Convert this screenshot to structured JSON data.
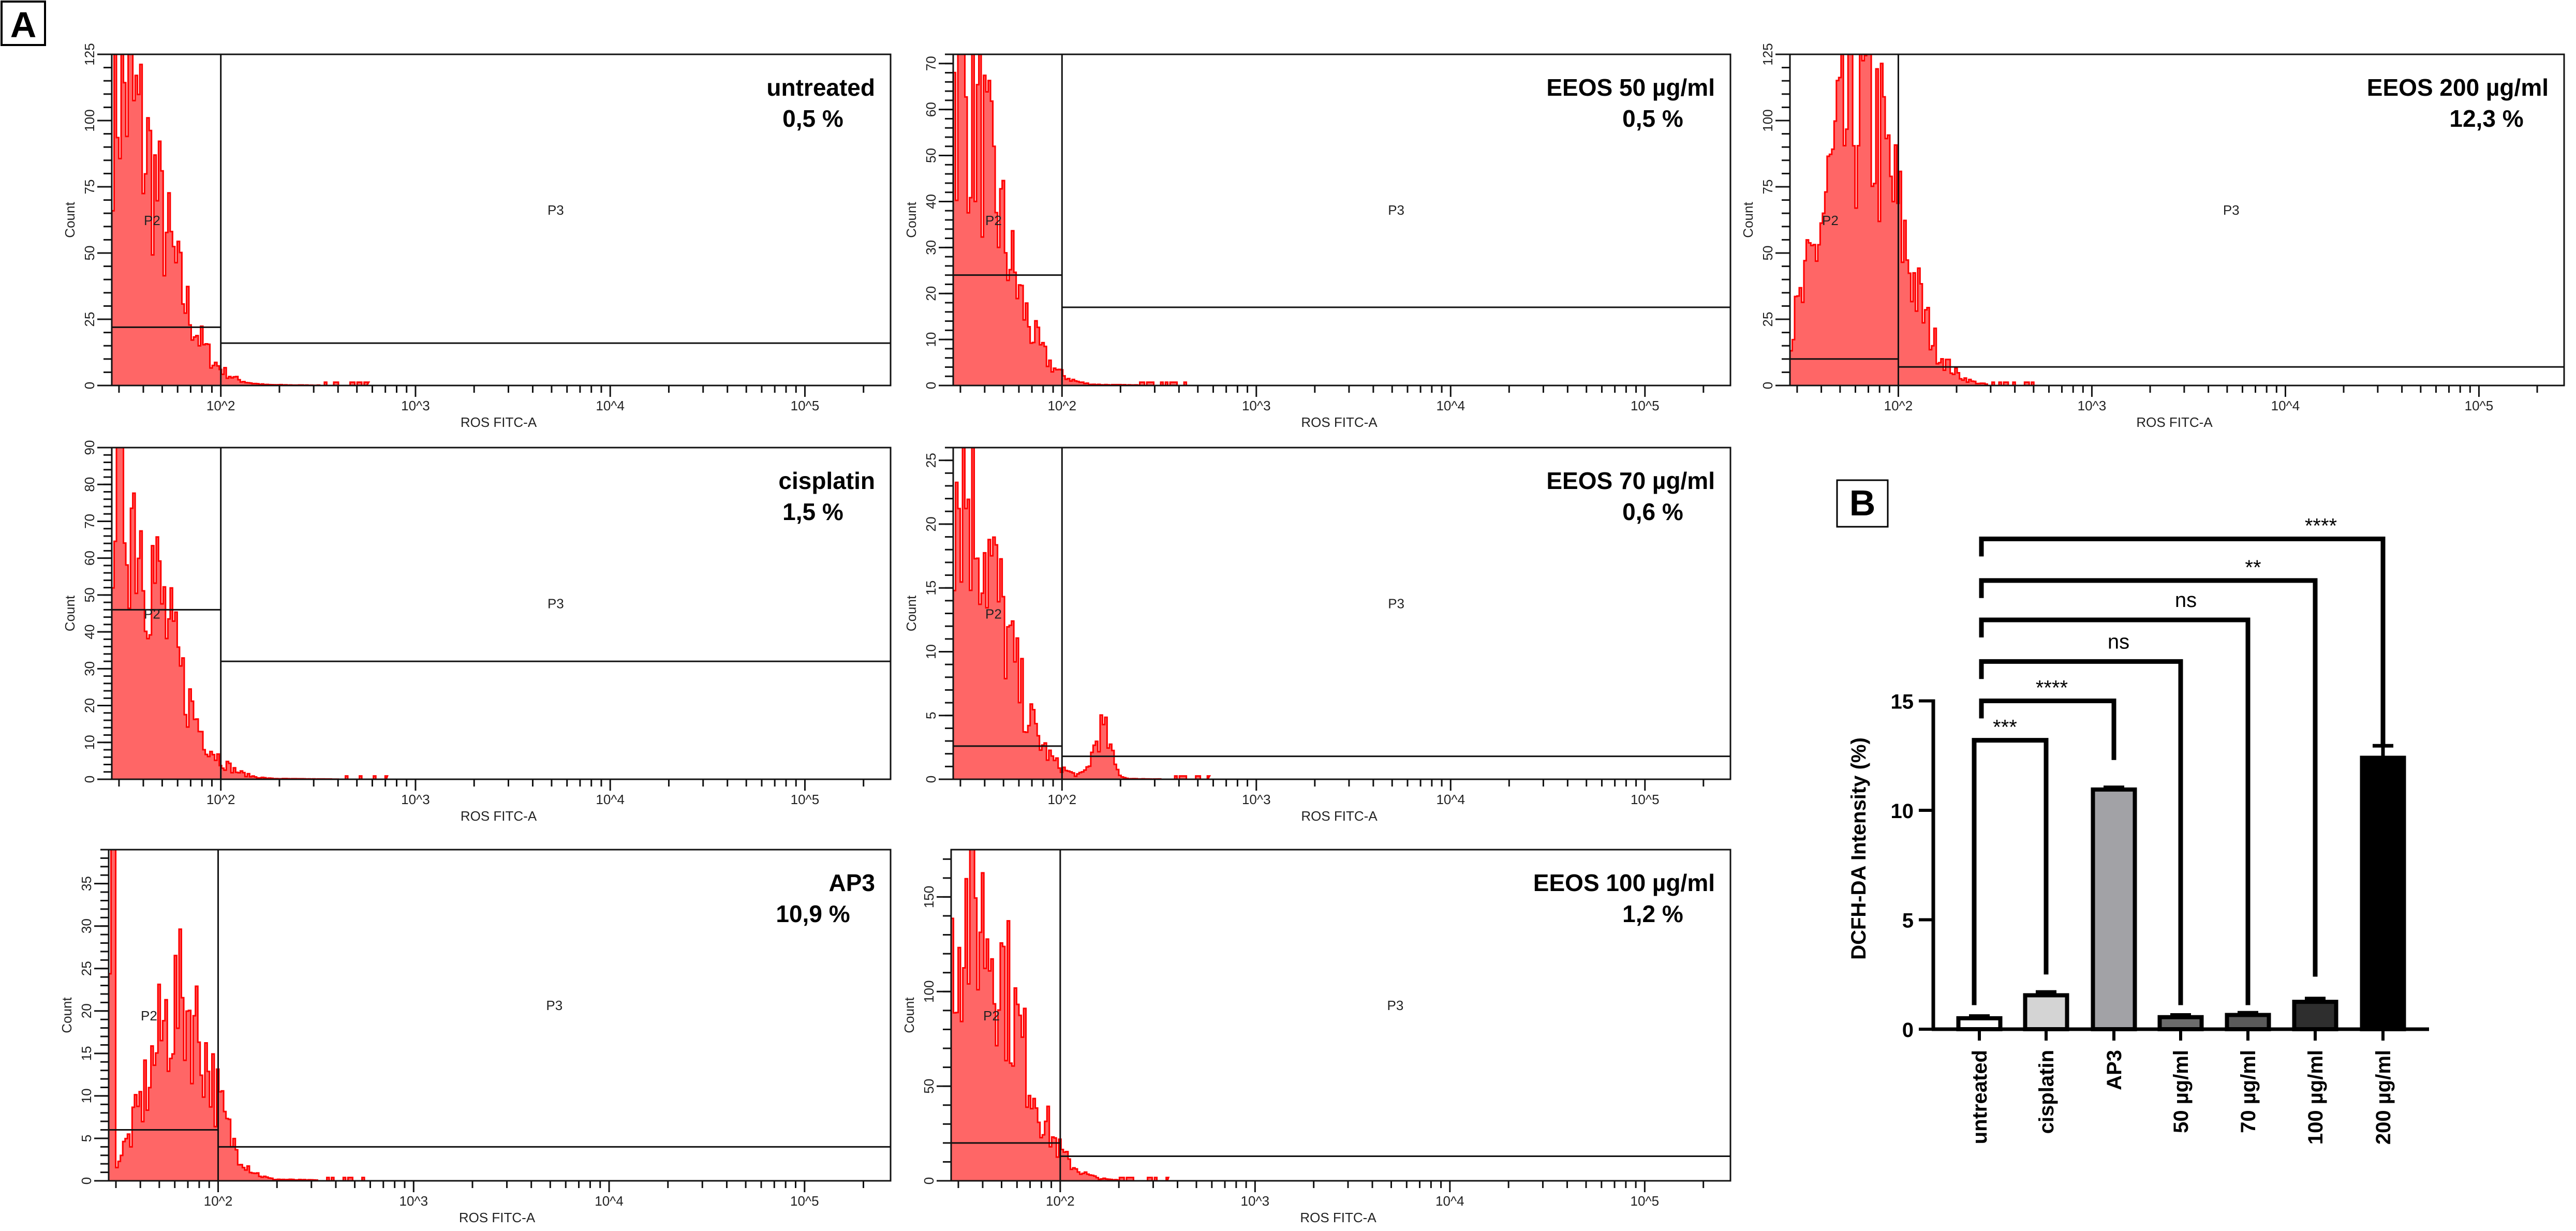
{
  "chart_data": [
    {
      "type": "histogram-grid",
      "panel_label": "A",
      "xlabel": "ROS FITC-A",
      "ylabel": "Count",
      "x_scale": "log",
      "x_tick_labels": [
        "10^2",
        "10^3",
        "10^4",
        "10^5"
      ],
      "gate_labels": [
        "P2",
        "P3"
      ],
      "fill_color": "#ff6666",
      "line_color": "#ff0000",
      "panels": [
        {
          "title": "untreated",
          "percent": "0,5 %",
          "ylim": [
            0,
            125
          ],
          "y_ticks": [
            0,
            25,
            50,
            75,
            100,
            125
          ]
        },
        {
          "title": "EEOS 50 µg/ml",
          "percent": "0,5 %",
          "ylim": [
            0,
            72
          ],
          "y_ticks": [
            0,
            10,
            20,
            30,
            40,
            50,
            60,
            70
          ]
        },
        {
          "title": "EEOS 200 µg/ml",
          "percent": "12,3 %",
          "ylim": [
            0,
            125
          ],
          "y_ticks": [
            0,
            25,
            50,
            75,
            100,
            125
          ]
        },
        {
          "title": "cisplatin",
          "percent": "1,5 %",
          "ylim": [
            0,
            90
          ],
          "y_ticks": [
            0,
            10,
            20,
            30,
            40,
            50,
            60,
            70,
            80,
            90
          ]
        },
        {
          "title": "EEOS 70 µg/ml",
          "percent": "0,6 %",
          "ylim": [
            0,
            26
          ],
          "y_ticks": [
            0,
            5,
            10,
            15,
            20,
            25
          ]
        },
        {
          "title": "AP3",
          "percent": "10,9 %",
          "ylim": [
            0,
            39
          ],
          "y_ticks": [
            0,
            5,
            10,
            15,
            20,
            25,
            30,
            35
          ]
        },
        {
          "title": "EEOS 100 µg/ml",
          "percent": "1,2 %",
          "ylim": [
            0,
            175
          ],
          "y_ticks": [
            0,
            50,
            100,
            150
          ]
        }
      ]
    },
    {
      "type": "bar",
      "panel_label": "B",
      "ylabel": "DCFH-DA Intensity (%)",
      "ylim": [
        0,
        15
      ],
      "y_ticks": [
        0,
        5,
        10,
        15
      ],
      "categories": [
        "untreated",
        "cisplatin",
        "AP3",
        "50 µg/ml",
        "70 µg/ml",
        "100 µg/ml",
        "200 µg/ml"
      ],
      "values": [
        0.5,
        1.55,
        10.95,
        0.55,
        0.65,
        1.25,
        12.4
      ],
      "errors": [
        0.1,
        0.15,
        0.1,
        0.1,
        0.1,
        0.15,
        0.55
      ],
      "bar_colors": [
        "#ffffff",
        "#d4d4d4",
        "#a2a2a6",
        "#6c6c6c",
        "#5a5a5a",
        "#2e2e2e",
        "#000000"
      ],
      "comparisons": [
        {
          "from": "untreated",
          "to": "cisplatin",
          "label": "***"
        },
        {
          "from": "untreated",
          "to": "AP3",
          "label": "****"
        },
        {
          "from": "untreated",
          "to": "50 µg/ml",
          "label": "ns"
        },
        {
          "from": "untreated",
          "to": "70 µg/ml",
          "label": "ns"
        },
        {
          "from": "untreated",
          "to": "100 µg/ml",
          "label": "**"
        },
        {
          "from": "untreated",
          "to": "200 µg/ml",
          "label": "****"
        }
      ]
    }
  ]
}
